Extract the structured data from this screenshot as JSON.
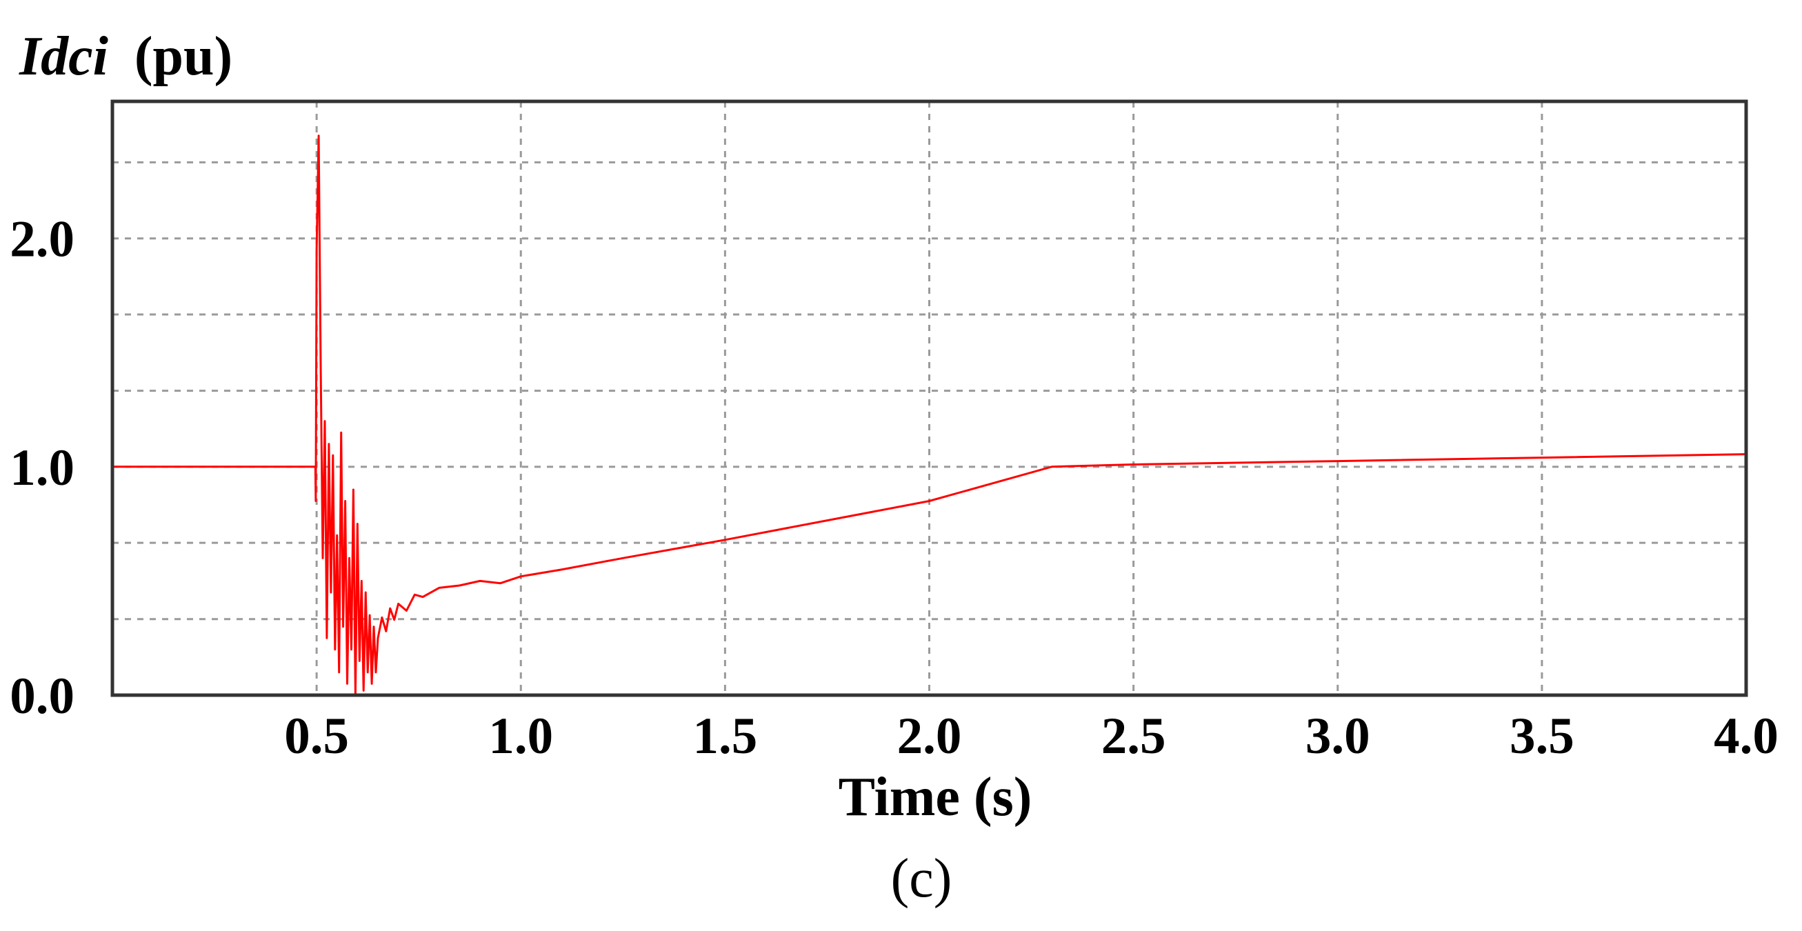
{
  "chart_data": {
    "type": "line",
    "ylabel_italic": "Idci",
    "ylabel_unit": "(pu)",
    "xlabel": "Time (s)",
    "caption": "(c)",
    "xlim": [
      0,
      4.0
    ],
    "ylim": [
      0,
      2.6
    ],
    "x_ticks": [
      {
        "value": 0.5,
        "label": "0.5"
      },
      {
        "value": 1.0,
        "label": "1.0"
      },
      {
        "value": 1.5,
        "label": "1.5"
      },
      {
        "value": 2.0,
        "label": "2.0"
      },
      {
        "value": 2.5,
        "label": "2.5"
      },
      {
        "value": 3.0,
        "label": "3.0"
      },
      {
        "value": 3.5,
        "label": "3.5"
      },
      {
        "value": 4.0,
        "label": "4.0"
      }
    ],
    "y_ticks": [
      {
        "value": 0.0,
        "label": "0.0"
      },
      {
        "value": 1.0,
        "label": "1.0"
      },
      {
        "value": 2.0,
        "label": "2.0"
      }
    ],
    "grid": true,
    "x_grid": [
      0.5,
      1.0,
      1.5,
      2.0,
      2.5,
      3.0,
      3.5
    ],
    "y_grid": [
      0.333,
      0.667,
      1.0,
      1.333,
      1.667,
      2.0,
      2.333
    ],
    "series": [
      {
        "color": "#ff0000",
        "x": [
          0,
          0.497,
          0.498,
          0.5,
          0.505,
          0.51,
          0.515,
          0.52,
          0.525,
          0.53,
          0.535,
          0.54,
          0.545,
          0.55,
          0.555,
          0.56,
          0.565,
          0.57,
          0.575,
          0.58,
          0.585,
          0.59,
          0.595,
          0.6,
          0.605,
          0.61,
          0.615,
          0.62,
          0.625,
          0.63,
          0.635,
          0.64,
          0.645,
          0.65,
          0.66,
          0.67,
          0.68,
          0.69,
          0.7,
          0.72,
          0.74,
          0.76,
          0.8,
          0.85,
          0.9,
          0.95,
          1.0,
          1.1,
          1.25,
          1.5,
          2.0,
          2.3,
          2.5,
          3.0,
          3.5,
          4.0
        ],
        "y": [
          1.0,
          1.0,
          0.85,
          1.95,
          2.45,
          1.45,
          0.6,
          1.2,
          0.25,
          1.1,
          0.45,
          1.05,
          0.2,
          0.7,
          0.1,
          1.15,
          0.3,
          0.85,
          0.05,
          0.6,
          0.2,
          0.9,
          0.0,
          0.75,
          0.15,
          0.5,
          0.02,
          0.45,
          0.1,
          0.35,
          0.05,
          0.3,
          0.1,
          0.25,
          0.34,
          0.28,
          0.38,
          0.33,
          0.4,
          0.37,
          0.44,
          0.43,
          0.47,
          0.48,
          0.5,
          0.49,
          0.52,
          0.55,
          0.6,
          0.68,
          0.85,
          1.0,
          1.01,
          1.025,
          1.04,
          1.055
        ]
      }
    ]
  }
}
